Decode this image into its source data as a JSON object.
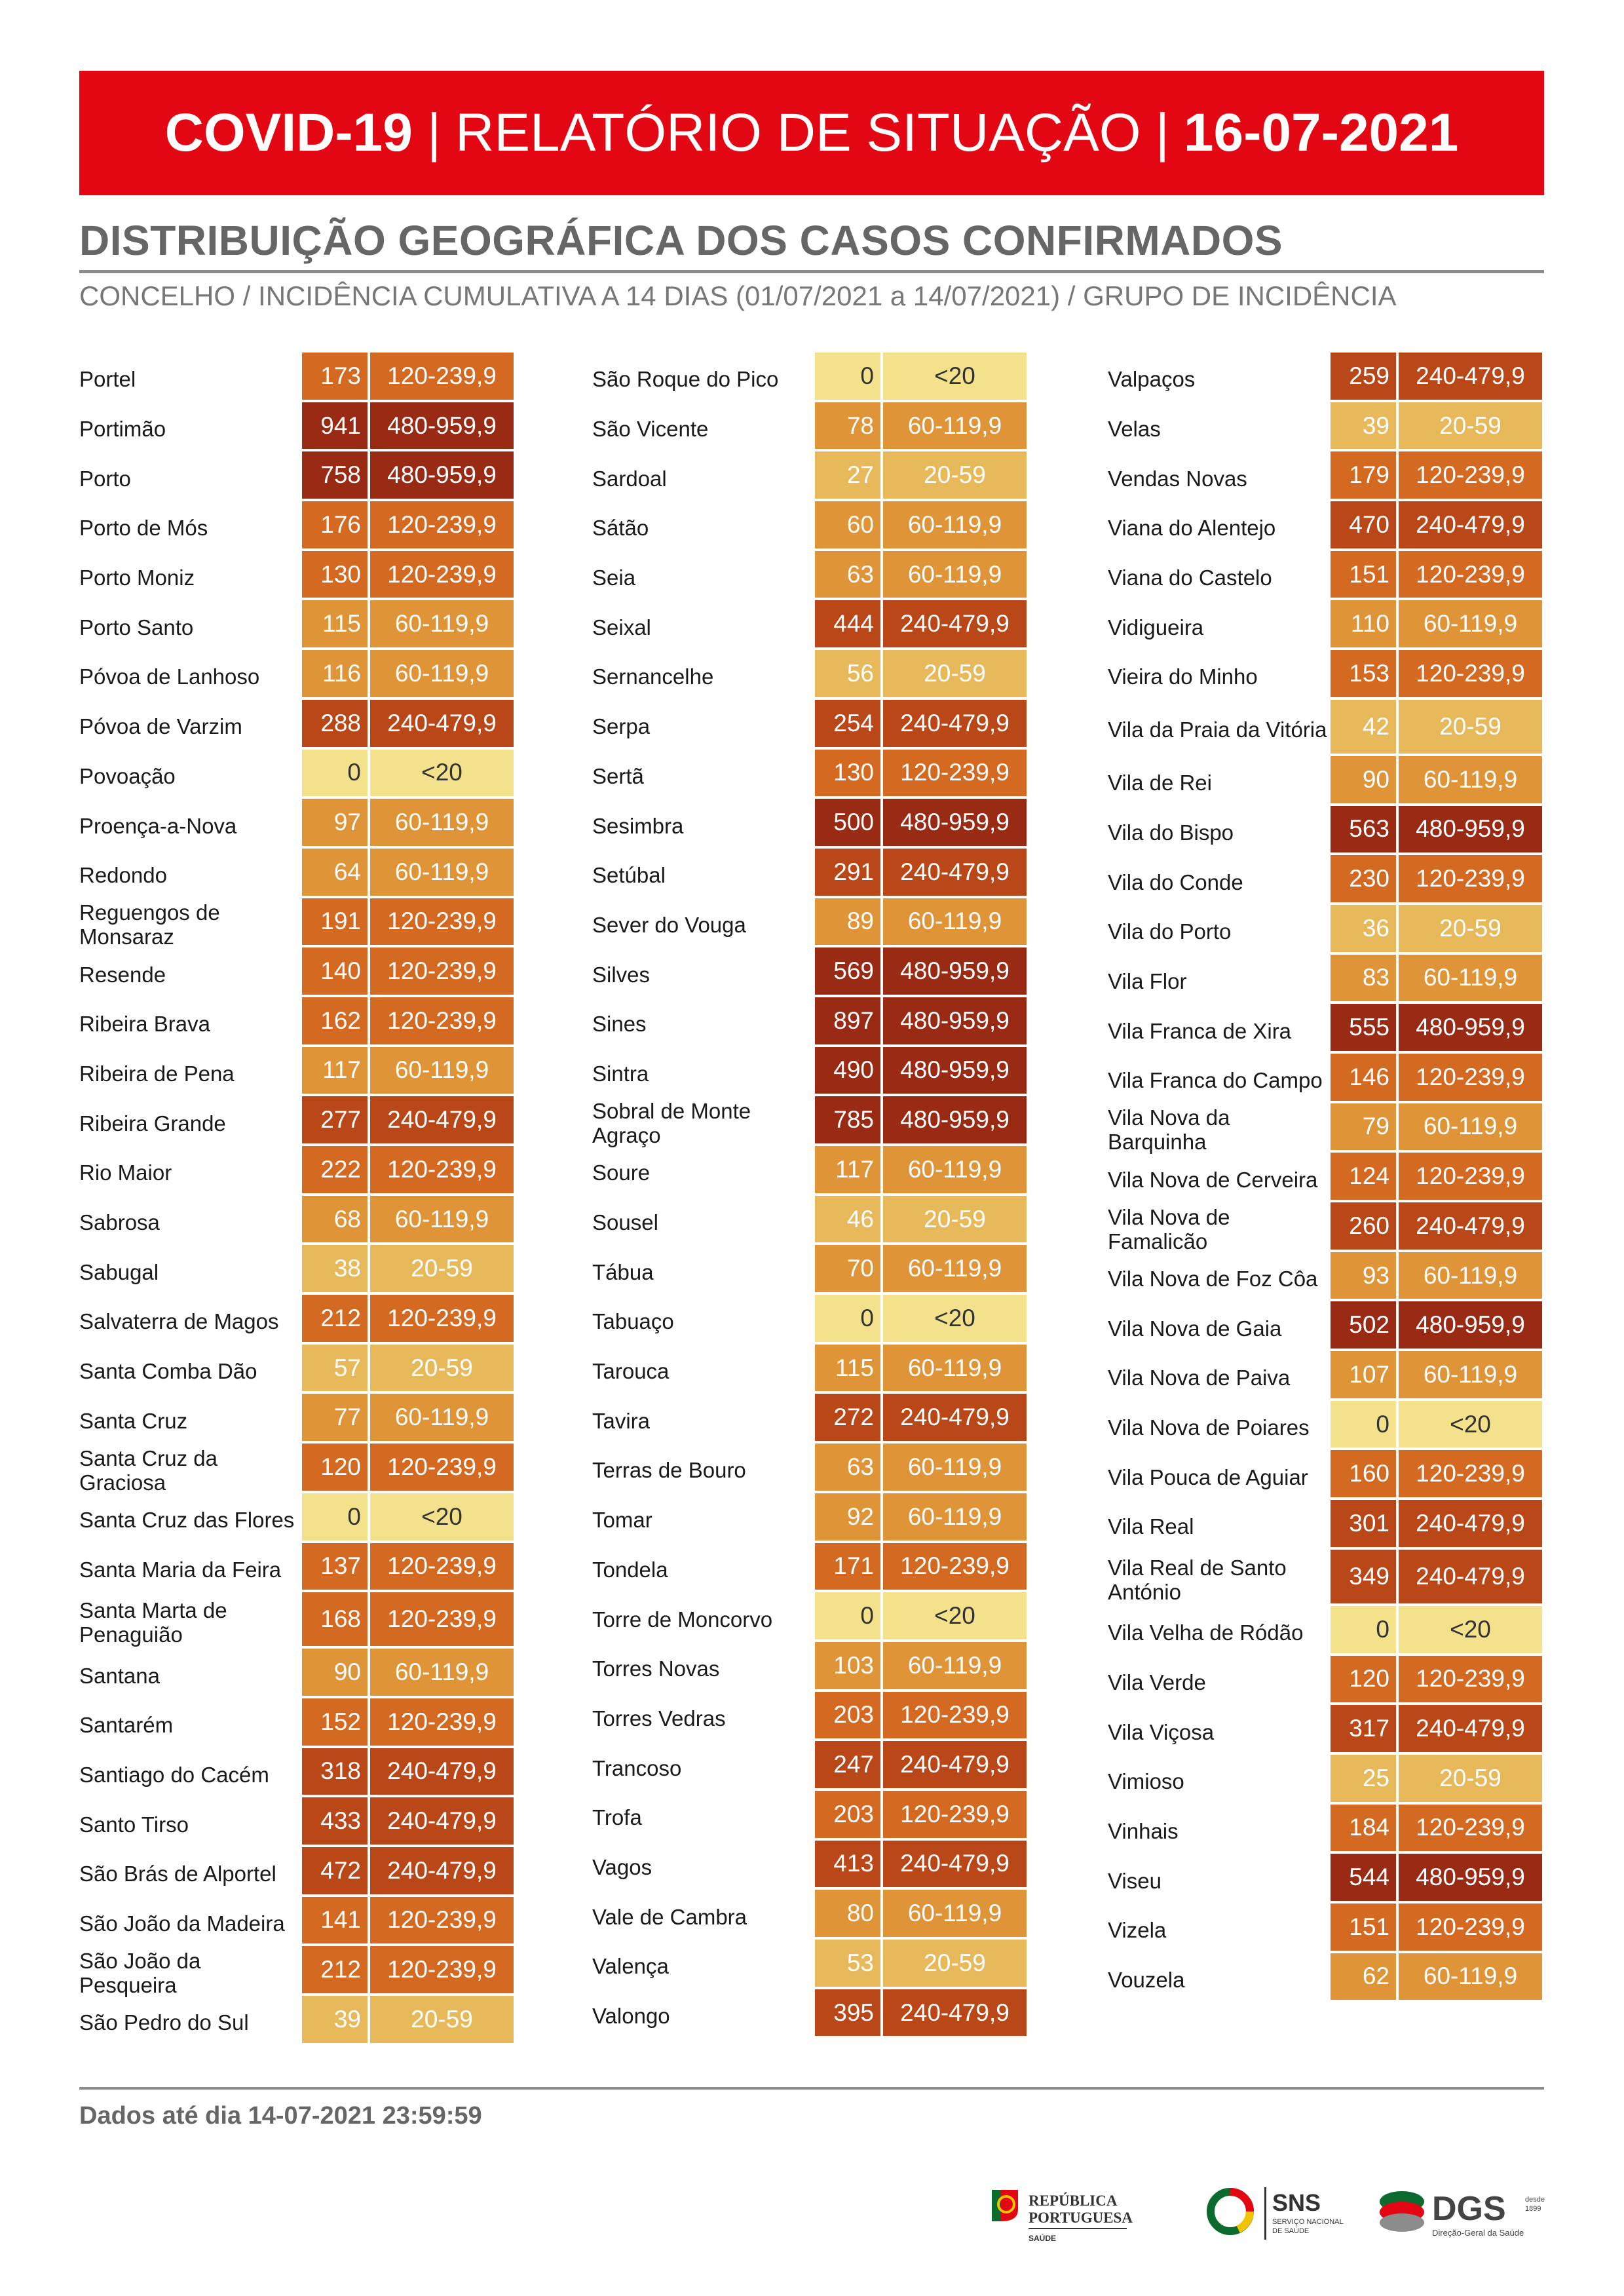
{
  "header": {
    "title_bold": "COVID-19",
    "separator": "|",
    "title_main": "RELATÓRIO DE SITUAÇÃO",
    "date": "16-07-2021"
  },
  "section": {
    "title": "DISTRIBUIÇÃO GEOGRÁFICA DOS CASOS CONFIRMADOS",
    "subtitle": "CONCELHO / INCIDÊNCIA CUMULATIVA A 14 DIAS (01/07/2021 a 14/07/2021) / GRUPO DE INCIDÊNCIA"
  },
  "colors": {
    "banner": "#e30613",
    "<20": "#f3e18c",
    "20-59": "#e8b95a",
    "60-119,9": "#e09438",
    "120-239,9": "#d46a22",
    "240-479,9": "#b94718",
    "480-959,9": "#992a14"
  },
  "columns": [
    [
      {
        "name": "Portel",
        "value": "173",
        "group": "120-239,9"
      },
      {
        "name": "Portimão",
        "value": "941",
        "group": "480-959,9"
      },
      {
        "name": "Porto",
        "value": "758",
        "group": "480-959,9"
      },
      {
        "name": "Porto de Mós",
        "value": "176",
        "group": "120-239,9"
      },
      {
        "name": "Porto Moniz",
        "value": "130",
        "group": "120-239,9"
      },
      {
        "name": "Porto Santo",
        "value": "115",
        "group": "60-119,9"
      },
      {
        "name": "Póvoa de Lanhoso",
        "value": "116",
        "group": "60-119,9"
      },
      {
        "name": "Póvoa de Varzim",
        "value": "288",
        "group": "240-479,9"
      },
      {
        "name": "Povoação",
        "value": "0",
        "group": "<20"
      },
      {
        "name": "Proença-a-Nova",
        "value": "97",
        "group": "60-119,9"
      },
      {
        "name": "Redondo",
        "value": "64",
        "group": "60-119,9"
      },
      {
        "name": "Reguengos de Monsaraz",
        "value": "191",
        "group": "120-239,9"
      },
      {
        "name": "Resende",
        "value": "140",
        "group": "120-239,9"
      },
      {
        "name": "Ribeira Brava",
        "value": "162",
        "group": "120-239,9"
      },
      {
        "name": "Ribeira de Pena",
        "value": "117",
        "group": "60-119,9"
      },
      {
        "name": "Ribeira Grande",
        "value": "277",
        "group": "240-479,9"
      },
      {
        "name": "Rio Maior",
        "value": "222",
        "group": "120-239,9"
      },
      {
        "name": "Sabrosa",
        "value": "68",
        "group": "60-119,9"
      },
      {
        "name": "Sabugal",
        "value": "38",
        "group": "20-59"
      },
      {
        "name": "Salvaterra de Magos",
        "value": "212",
        "group": "120-239,9"
      },
      {
        "name": "Santa Comba Dão",
        "value": "57",
        "group": "20-59"
      },
      {
        "name": "Santa Cruz",
        "value": "77",
        "group": "60-119,9"
      },
      {
        "name": "Santa Cruz da Graciosa",
        "value": "120",
        "group": "120-239,9"
      },
      {
        "name": "Santa Cruz das Flores",
        "value": "0",
        "group": "<20"
      },
      {
        "name": "Santa Maria da Feira",
        "value": "137",
        "group": "120-239,9"
      },
      {
        "name": "Santa Marta de Penaguião",
        "value": "168",
        "group": "120-239,9"
      },
      {
        "name": "Santana",
        "value": "90",
        "group": "60-119,9"
      },
      {
        "name": "Santarém",
        "value": "152",
        "group": "120-239,9"
      },
      {
        "name": "Santiago do Cacém",
        "value": "318",
        "group": "240-479,9"
      },
      {
        "name": "Santo Tirso",
        "value": "433",
        "group": "240-479,9"
      },
      {
        "name": "São Brás de Alportel",
        "value": "472",
        "group": "240-479,9"
      },
      {
        "name": "São João da Madeira",
        "value": "141",
        "group": "120-239,9"
      },
      {
        "name": "São João da Pesqueira",
        "value": "212",
        "group": "120-239,9"
      },
      {
        "name": "São Pedro do Sul",
        "value": "39",
        "group": "20-59"
      }
    ],
    [
      {
        "name": "São Roque do Pico",
        "value": "0",
        "group": "<20"
      },
      {
        "name": "São Vicente",
        "value": "78",
        "group": "60-119,9"
      },
      {
        "name": "Sardoal",
        "value": "27",
        "group": "20-59"
      },
      {
        "name": "Sátão",
        "value": "60",
        "group": "60-119,9"
      },
      {
        "name": "Seia",
        "value": "63",
        "group": "60-119,9"
      },
      {
        "name": "Seixal",
        "value": "444",
        "group": "240-479,9"
      },
      {
        "name": "Sernancelhe",
        "value": "56",
        "group": "20-59"
      },
      {
        "name": "Serpa",
        "value": "254",
        "group": "240-479,9"
      },
      {
        "name": "Sertã",
        "value": "130",
        "group": "120-239,9"
      },
      {
        "name": "Sesimbra",
        "value": "500",
        "group": "480-959,9"
      },
      {
        "name": "Setúbal",
        "value": "291",
        "group": "240-479,9"
      },
      {
        "name": "Sever do Vouga",
        "value": "89",
        "group": "60-119,9"
      },
      {
        "name": "Silves",
        "value": "569",
        "group": "480-959,9"
      },
      {
        "name": "Sines",
        "value": "897",
        "group": "480-959,9"
      },
      {
        "name": "Sintra",
        "value": "490",
        "group": "480-959,9"
      },
      {
        "name": "Sobral de Monte Agraço",
        "value": "785",
        "group": "480-959,9"
      },
      {
        "name": "Soure",
        "value": "117",
        "group": "60-119,9"
      },
      {
        "name": "Sousel",
        "value": "46",
        "group": "20-59"
      },
      {
        "name": "Tábua",
        "value": "70",
        "group": "60-119,9"
      },
      {
        "name": "Tabuaço",
        "value": "0",
        "group": "<20"
      },
      {
        "name": "Tarouca",
        "value": "115",
        "group": "60-119,9"
      },
      {
        "name": "Tavira",
        "value": "272",
        "group": "240-479,9"
      },
      {
        "name": "Terras de Bouro",
        "value": "63",
        "group": "60-119,9"
      },
      {
        "name": "Tomar",
        "value": "92",
        "group": "60-119,9"
      },
      {
        "name": "Tondela",
        "value": "171",
        "group": "120-239,9"
      },
      {
        "name": "Torre de Moncorvo",
        "value": "0",
        "group": "<20"
      },
      {
        "name": "Torres Novas",
        "value": "103",
        "group": "60-119,9"
      },
      {
        "name": "Torres Vedras",
        "value": "203",
        "group": "120-239,9"
      },
      {
        "name": "Trancoso",
        "value": "247",
        "group": "240-479,9"
      },
      {
        "name": "Trofa",
        "value": "203",
        "group": "120-239,9"
      },
      {
        "name": "Vagos",
        "value": "413",
        "group": "240-479,9"
      },
      {
        "name": "Vale de Cambra",
        "value": "80",
        "group": "60-119,9"
      },
      {
        "name": "Valença",
        "value": "53",
        "group": "20-59"
      },
      {
        "name": "Valongo",
        "value": "395",
        "group": "240-479,9"
      }
    ],
    [
      {
        "name": "Valpaços",
        "value": "259",
        "group": "240-479,9"
      },
      {
        "name": "Velas",
        "value": "39",
        "group": "20-59"
      },
      {
        "name": "Vendas Novas",
        "value": "179",
        "group": "120-239,9"
      },
      {
        "name": "Viana do Alentejo",
        "value": "470",
        "group": "240-479,9"
      },
      {
        "name": "Viana do Castelo",
        "value": "151",
        "group": "120-239,9"
      },
      {
        "name": "Vidigueira",
        "value": "110",
        "group": "60-119,9"
      },
      {
        "name": "Vieira do Minho",
        "value": "153",
        "group": "120-239,9"
      },
      {
        "name": "Vila da Praia da Vitória",
        "value": "42",
        "group": "20-59"
      },
      {
        "name": "Vila de Rei",
        "value": "90",
        "group": "60-119,9"
      },
      {
        "name": "Vila do Bispo",
        "value": "563",
        "group": "480-959,9"
      },
      {
        "name": "Vila do Conde",
        "value": "230",
        "group": "120-239,9"
      },
      {
        "name": "Vila do Porto",
        "value": "36",
        "group": "20-59"
      },
      {
        "name": "Vila Flor",
        "value": "83",
        "group": "60-119,9"
      },
      {
        "name": "Vila Franca de Xira",
        "value": "555",
        "group": "480-959,9"
      },
      {
        "name": "Vila Franca do Campo",
        "value": "146",
        "group": "120-239,9"
      },
      {
        "name": "Vila Nova da Barquinha",
        "value": "79",
        "group": "60-119,9"
      },
      {
        "name": "Vila Nova de Cerveira",
        "value": "124",
        "group": "120-239,9"
      },
      {
        "name": "Vila Nova de Famalicão",
        "value": "260",
        "group": "240-479,9"
      },
      {
        "name": "Vila Nova de Foz Côa",
        "value": "93",
        "group": "60-119,9"
      },
      {
        "name": "Vila Nova de Gaia",
        "value": "502",
        "group": "480-959,9"
      },
      {
        "name": "Vila Nova de Paiva",
        "value": "107",
        "group": "60-119,9"
      },
      {
        "name": "Vila Nova de Poiares",
        "value": "0",
        "group": "<20"
      },
      {
        "name": "Vila Pouca de Aguiar",
        "value": "160",
        "group": "120-239,9"
      },
      {
        "name": "Vila Real",
        "value": "301",
        "group": "240-479,9"
      },
      {
        "name": "Vila Real de Santo António",
        "value": "349",
        "group": "240-479,9"
      },
      {
        "name": "Vila Velha de Ródão",
        "value": "0",
        "group": "<20"
      },
      {
        "name": "Vila Verde",
        "value": "120",
        "group": "120-239,9"
      },
      {
        "name": "Vila Viçosa",
        "value": "317",
        "group": "240-479,9"
      },
      {
        "name": "Vimioso",
        "value": "25",
        "group": "20-59"
      },
      {
        "name": "Vinhais",
        "value": "184",
        "group": "120-239,9"
      },
      {
        "name": "Viseu",
        "value": "544",
        "group": "480-959,9"
      },
      {
        "name": "Vizela",
        "value": "151",
        "group": "120-239,9"
      },
      {
        "name": "Vouzela",
        "value": "62",
        "group": "60-119,9"
      }
    ]
  ],
  "footer": {
    "note": "Dados até dia 14-07-2021 23:59:59",
    "logos": {
      "republica": {
        "line1": "REPÚBLICA",
        "line2": "PORTUGUESA",
        "line3": "SAÚDE"
      },
      "sns": {
        "title": "SNS",
        "line1": "SERVIÇO NACIONAL",
        "line2": "DE SAÚDE"
      },
      "dgs": {
        "title": "DGS",
        "since1": "desde",
        "since2": "1899",
        "sub": "Direção-Geral da Saúde"
      }
    }
  }
}
